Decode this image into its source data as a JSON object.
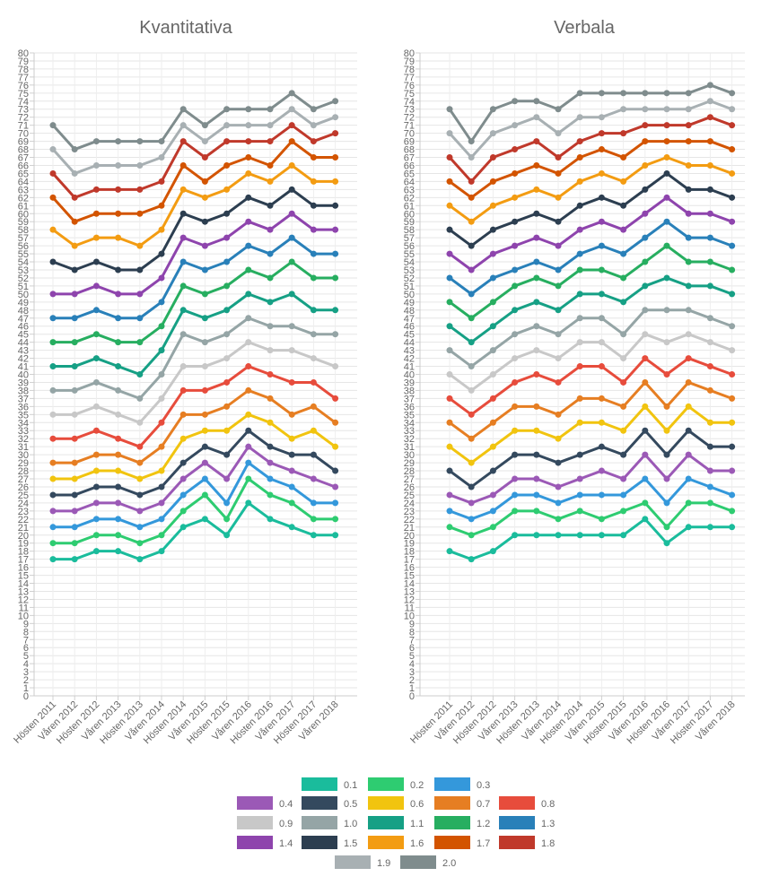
{
  "legend": [
    {
      "label": "0.1",
      "color": "#1abc9c"
    },
    {
      "label": "0.2",
      "color": "#2ecc71"
    },
    {
      "label": "0.3",
      "color": "#3498db"
    },
    {
      "label": "0.4",
      "color": "#9b59b6"
    },
    {
      "label": "0.5",
      "color": "#34495e"
    },
    {
      "label": "0.6",
      "color": "#f1c40f"
    },
    {
      "label": "0.7",
      "color": "#e67e22"
    },
    {
      "label": "0.8",
      "color": "#e74c3c"
    },
    {
      "label": "0.9",
      "color": "#c8c8c8"
    },
    {
      "label": "1.0",
      "color": "#95a5a6"
    },
    {
      "label": "1.1",
      "color": "#16a085"
    },
    {
      "label": "1.2",
      "color": "#27ae60"
    },
    {
      "label": "1.3",
      "color": "#2980b9"
    },
    {
      "label": "1.4",
      "color": "#8e44ad"
    },
    {
      "label": "1.5",
      "color": "#2c3e50"
    },
    {
      "label": "1.6",
      "color": "#f39c12"
    },
    {
      "label": "1.7",
      "color": "#d35400"
    },
    {
      "label": "1.8",
      "color": "#c0392b"
    },
    {
      "label": "1.9",
      "color": "#a8b0b3"
    },
    {
      "label": "2.0",
      "color": "#7f8c8d"
    }
  ],
  "chart_data": [
    {
      "type": "line",
      "title": "Kvantitativa",
      "ylim": [
        0,
        80
      ],
      "grid": true,
      "legend_position": "bottom",
      "categories": [
        "Hösten 2011",
        "Våren 2012",
        "Hösten 2012",
        "Våren 2013",
        "Hösten 2013",
        "Våren 2014",
        "Hösten 2014",
        "Våren 2015",
        "Hösten 2015",
        "Våren 2016",
        "Hösten 2016",
        "Våren 2017",
        "Hösten 2017",
        "Våren 2018"
      ],
      "series": [
        {
          "name": "0.1",
          "values": [
            17,
            17,
            18,
            18,
            17,
            18,
            21,
            22,
            20,
            24,
            22,
            21,
            20,
            20
          ]
        },
        {
          "name": "0.2",
          "values": [
            19,
            19,
            20,
            20,
            19,
            20,
            23,
            25,
            22,
            27,
            25,
            24,
            22,
            22
          ]
        },
        {
          "name": "0.3",
          "values": [
            21,
            21,
            22,
            22,
            21,
            22,
            25,
            27,
            24,
            29,
            27,
            26,
            24,
            24
          ]
        },
        {
          "name": "0.4",
          "values": [
            23,
            23,
            24,
            24,
            23,
            24,
            27,
            29,
            27,
            31,
            29,
            28,
            27,
            26
          ]
        },
        {
          "name": "0.5",
          "values": [
            25,
            25,
            26,
            26,
            25,
            26,
            29,
            31,
            30,
            33,
            31,
            30,
            30,
            28
          ]
        },
        {
          "name": "0.6",
          "values": [
            27,
            27,
            28,
            28,
            27,
            28,
            32,
            33,
            33,
            35,
            34,
            32,
            33,
            31
          ]
        },
        {
          "name": "0.7",
          "values": [
            29,
            29,
            30,
            30,
            29,
            31,
            35,
            35,
            36,
            38,
            37,
            35,
            36,
            34
          ]
        },
        {
          "name": "0.8",
          "values": [
            32,
            32,
            33,
            32,
            31,
            34,
            38,
            38,
            39,
            41,
            40,
            39,
            39,
            37
          ]
        },
        {
          "name": "0.9",
          "values": [
            35,
            35,
            36,
            35,
            34,
            37,
            41,
            41,
            42,
            44,
            43,
            43,
            42,
            41
          ]
        },
        {
          "name": "1.0",
          "values": [
            38,
            38,
            39,
            38,
            37,
            40,
            45,
            44,
            45,
            47,
            46,
            46,
            45,
            45
          ]
        },
        {
          "name": "1.1",
          "values": [
            41,
            41,
            42,
            41,
            40,
            43,
            48,
            47,
            48,
            50,
            49,
            50,
            48,
            48
          ]
        },
        {
          "name": "1.2",
          "values": [
            44,
            44,
            45,
            44,
            44,
            46,
            51,
            50,
            51,
            53,
            52,
            54,
            52,
            52
          ]
        },
        {
          "name": "1.3",
          "values": [
            47,
            47,
            48,
            47,
            47,
            49,
            54,
            53,
            54,
            56,
            55,
            57,
            55,
            55
          ]
        },
        {
          "name": "1.4",
          "values": [
            50,
            50,
            51,
            50,
            50,
            52,
            57,
            56,
            57,
            59,
            58,
            60,
            58,
            58
          ]
        },
        {
          "name": "1.5",
          "values": [
            54,
            53,
            54,
            53,
            53,
            55,
            60,
            59,
            60,
            62,
            61,
            63,
            61,
            61
          ]
        },
        {
          "name": "1.6",
          "values": [
            58,
            56,
            57,
            57,
            56,
            58,
            63,
            62,
            63,
            65,
            64,
            66,
            64,
            64
          ]
        },
        {
          "name": "1.7",
          "values": [
            62,
            59,
            60,
            60,
            60,
            61,
            66,
            64,
            66,
            67,
            66,
            69,
            67,
            67
          ]
        },
        {
          "name": "1.8",
          "values": [
            65,
            62,
            63,
            63,
            63,
            64,
            69,
            67,
            69,
            69,
            69,
            71,
            69,
            70
          ]
        },
        {
          "name": "1.9",
          "values": [
            68,
            65,
            66,
            66,
            66,
            67,
            71,
            69,
            71,
            71,
            71,
            73,
            71,
            72
          ]
        },
        {
          "name": "2.0",
          "values": [
            71,
            68,
            69,
            69,
            69,
            69,
            73,
            71,
            73,
            73,
            73,
            75,
            73,
            74
          ]
        }
      ]
    },
    {
      "type": "line",
      "title": "Verbala",
      "ylim": [
        0,
        80
      ],
      "grid": true,
      "legend_position": "bottom",
      "categories": [
        "Hösten 2011",
        "Våren 2012",
        "Hösten 2012",
        "Våren 2013",
        "Hösten 2013",
        "Våren 2014",
        "Hösten 2014",
        "Våren 2015",
        "Hösten 2015",
        "Våren 2016",
        "Hösten 2016",
        "Våren 2017",
        "Hösten 2017",
        "Våren 2018"
      ],
      "series": [
        {
          "name": "0.1",
          "values": [
            18,
            17,
            18,
            20,
            20,
            20,
            20,
            20,
            20,
            22,
            19,
            21,
            21,
            21
          ]
        },
        {
          "name": "0.2",
          "values": [
            21,
            20,
            21,
            23,
            23,
            22,
            23,
            22,
            23,
            24,
            21,
            24,
            24,
            23
          ]
        },
        {
          "name": "0.3",
          "values": [
            23,
            22,
            23,
            25,
            25,
            24,
            25,
            25,
            25,
            27,
            24,
            27,
            26,
            25
          ]
        },
        {
          "name": "0.4",
          "values": [
            25,
            24,
            25,
            27,
            27,
            26,
            27,
            28,
            27,
            30,
            27,
            30,
            28,
            28
          ]
        },
        {
          "name": "0.5",
          "values": [
            28,
            26,
            28,
            30,
            30,
            29,
            30,
            31,
            30,
            33,
            30,
            33,
            31,
            31
          ]
        },
        {
          "name": "0.6",
          "values": [
            31,
            29,
            31,
            33,
            33,
            32,
            34,
            34,
            33,
            36,
            33,
            36,
            34,
            34
          ]
        },
        {
          "name": "0.7",
          "values": [
            34,
            32,
            34,
            36,
            36,
            35,
            37,
            37,
            36,
            39,
            36,
            39,
            38,
            37
          ]
        },
        {
          "name": "0.8",
          "values": [
            37,
            35,
            37,
            39,
            40,
            39,
            41,
            41,
            39,
            42,
            40,
            42,
            41,
            40
          ]
        },
        {
          "name": "0.9",
          "values": [
            40,
            38,
            40,
            42,
            43,
            42,
            44,
            44,
            42,
            45,
            44,
            45,
            44,
            43
          ]
        },
        {
          "name": "1.0",
          "values": [
            43,
            41,
            43,
            45,
            46,
            45,
            47,
            47,
            45,
            48,
            48,
            48,
            47,
            46
          ]
        },
        {
          "name": "1.1",
          "values": [
            46,
            44,
            46,
            48,
            49,
            48,
            50,
            50,
            49,
            51,
            52,
            51,
            51,
            50
          ]
        },
        {
          "name": "1.2",
          "values": [
            49,
            47,
            49,
            51,
            52,
            51,
            53,
            53,
            52,
            54,
            56,
            54,
            54,
            53
          ]
        },
        {
          "name": "1.3",
          "values": [
            52,
            50,
            52,
            53,
            54,
            53,
            55,
            56,
            55,
            57,
            59,
            57,
            57,
            56
          ]
        },
        {
          "name": "1.4",
          "values": [
            55,
            53,
            55,
            56,
            57,
            56,
            58,
            59,
            58,
            60,
            62,
            60,
            60,
            59
          ]
        },
        {
          "name": "1.5",
          "values": [
            58,
            56,
            58,
            59,
            60,
            59,
            61,
            62,
            61,
            63,
            65,
            63,
            63,
            62
          ]
        },
        {
          "name": "1.6",
          "values": [
            61,
            59,
            61,
            62,
            63,
            62,
            64,
            65,
            64,
            66,
            67,
            66,
            66,
            65
          ]
        },
        {
          "name": "1.7",
          "values": [
            64,
            62,
            64,
            65,
            66,
            65,
            67,
            68,
            67,
            69,
            69,
            69,
            69,
            68
          ]
        },
        {
          "name": "1.8",
          "values": [
            67,
            64,
            67,
            68,
            69,
            67,
            69,
            70,
            70,
            71,
            71,
            71,
            72,
            71
          ]
        },
        {
          "name": "1.9",
          "values": [
            70,
            67,
            70,
            71,
            72,
            70,
            72,
            72,
            73,
            73,
            73,
            73,
            74,
            73
          ]
        },
        {
          "name": "2.0",
          "values": [
            73,
            69,
            73,
            74,
            74,
            73,
            75,
            75,
            75,
            75,
            75,
            75,
            76,
            75
          ]
        }
      ]
    }
  ]
}
